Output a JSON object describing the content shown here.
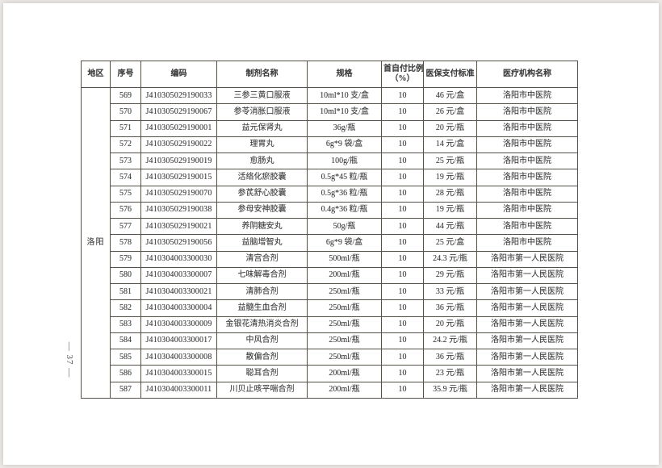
{
  "document": {
    "page_number": "— 37 —"
  },
  "table": {
    "headers": {
      "region": "地区",
      "no": "序号",
      "code": "编码",
      "name": "制剂名称",
      "spec": "规格",
      "ratio_line1": "首自付比例",
      "ratio_line2": "（%）",
      "price": "医保支付标准",
      "hospital": "医疗机构名称"
    },
    "region": "洛阳",
    "rows": [
      {
        "no": "569",
        "code": "J410305029190033",
        "name": "三参三黄口服液",
        "spec": "10ml*10 支/盒",
        "ratio": "10",
        "price": "46 元/盒",
        "hospital": "洛阳市中医院"
      },
      {
        "no": "570",
        "code": "J410305029190067",
        "name": "参苓消胀口服液",
        "spec": "10ml*10 支/盒",
        "ratio": "10",
        "price": "26 元/盒",
        "hospital": "洛阳市中医院"
      },
      {
        "no": "571",
        "code": "J410305029190001",
        "name": "益元保肾丸",
        "spec": "36g/瓶",
        "ratio": "10",
        "price": "20 元/瓶",
        "hospital": "洛阳市中医院"
      },
      {
        "no": "572",
        "code": "J410305029190022",
        "name": "理胃丸",
        "spec": "6g*9 袋/盒",
        "ratio": "10",
        "price": "14 元/盒",
        "hospital": "洛阳市中医院"
      },
      {
        "no": "573",
        "code": "J410305029190019",
        "name": "愈肠丸",
        "spec": "100g/瓶",
        "ratio": "10",
        "price": "25 元/瓶",
        "hospital": "洛阳市中医院"
      },
      {
        "no": "574",
        "code": "J410305029190015",
        "name": "活络化瘀胶囊",
        "spec": "0.5g*45 粒/瓶",
        "ratio": "10",
        "price": "19 元/瓶",
        "hospital": "洛阳市中医院"
      },
      {
        "no": "575",
        "code": "J410305029190070",
        "name": "参芪舒心胶囊",
        "spec": "0.5g*36 粒/瓶",
        "ratio": "10",
        "price": "28 元/瓶",
        "hospital": "洛阳市中医院"
      },
      {
        "no": "576",
        "code": "J410305029190038",
        "name": "参母安神胶囊",
        "spec": "0.4g*36 粒/瓶",
        "ratio": "10",
        "price": "19 元/瓶",
        "hospital": "洛阳市中医院"
      },
      {
        "no": "577",
        "code": "J410305029190021",
        "name": "养阴糖安丸",
        "spec": "50g/瓶",
        "ratio": "10",
        "price": "44 元/瓶",
        "hospital": "洛阳市中医院"
      },
      {
        "no": "578",
        "code": "J410305029190056",
        "name": "益脑增智丸",
        "spec": "6g*9 袋/盒",
        "ratio": "10",
        "price": "25 元/盒",
        "hospital": "洛阳市中医院"
      },
      {
        "no": "579",
        "code": "J410304003300030",
        "name": "清宫合剂",
        "spec": "500ml/瓶",
        "ratio": "10",
        "price": "24.3 元/瓶",
        "hospital": "洛阳市第一人民医院"
      },
      {
        "no": "580",
        "code": "J410304003300007",
        "name": "七味解毒合剂",
        "spec": "200ml/瓶",
        "ratio": "10",
        "price": "29 元/瓶",
        "hospital": "洛阳市第一人民医院"
      },
      {
        "no": "581",
        "code": "J410304003300021",
        "name": "清肺合剂",
        "spec": "250ml/瓶",
        "ratio": "10",
        "price": "33 元/瓶",
        "hospital": "洛阳市第一人民医院"
      },
      {
        "no": "582",
        "code": "J410304003300004",
        "name": "益髓生血合剂",
        "spec": "250ml/瓶",
        "ratio": "10",
        "price": "36 元/瓶",
        "hospital": "洛阳市第一人民医院"
      },
      {
        "no": "583",
        "code": "J410304003300009",
        "name": "金银花清热消炎合剂",
        "spec": "250ml/瓶",
        "ratio": "10",
        "price": "20 元/瓶",
        "hospital": "洛阳市第一人民医院"
      },
      {
        "no": "584",
        "code": "J410304003300017",
        "name": "中风合剂",
        "spec": "250ml/瓶",
        "ratio": "10",
        "price": "24.2 元/瓶",
        "hospital": "洛阳市第一人民医院"
      },
      {
        "no": "585",
        "code": "J410304003300008",
        "name": "散偏合剂",
        "spec": "250ml/瓶",
        "ratio": "10",
        "price": "36 元/瓶",
        "hospital": "洛阳市第一人民医院"
      },
      {
        "no": "586",
        "code": "J410304003300015",
        "name": "聪耳合剂",
        "spec": "200ml/瓶",
        "ratio": "10",
        "price": "23 元/瓶",
        "hospital": "洛阳市第一人民医院"
      },
      {
        "no": "587",
        "code": "J410304003300011",
        "name": "川贝止咳平喘合剂",
        "spec": "200ml/瓶",
        "ratio": "10",
        "price": "35.9 元/瓶",
        "hospital": "洛阳市第一人民医院"
      }
    ]
  }
}
